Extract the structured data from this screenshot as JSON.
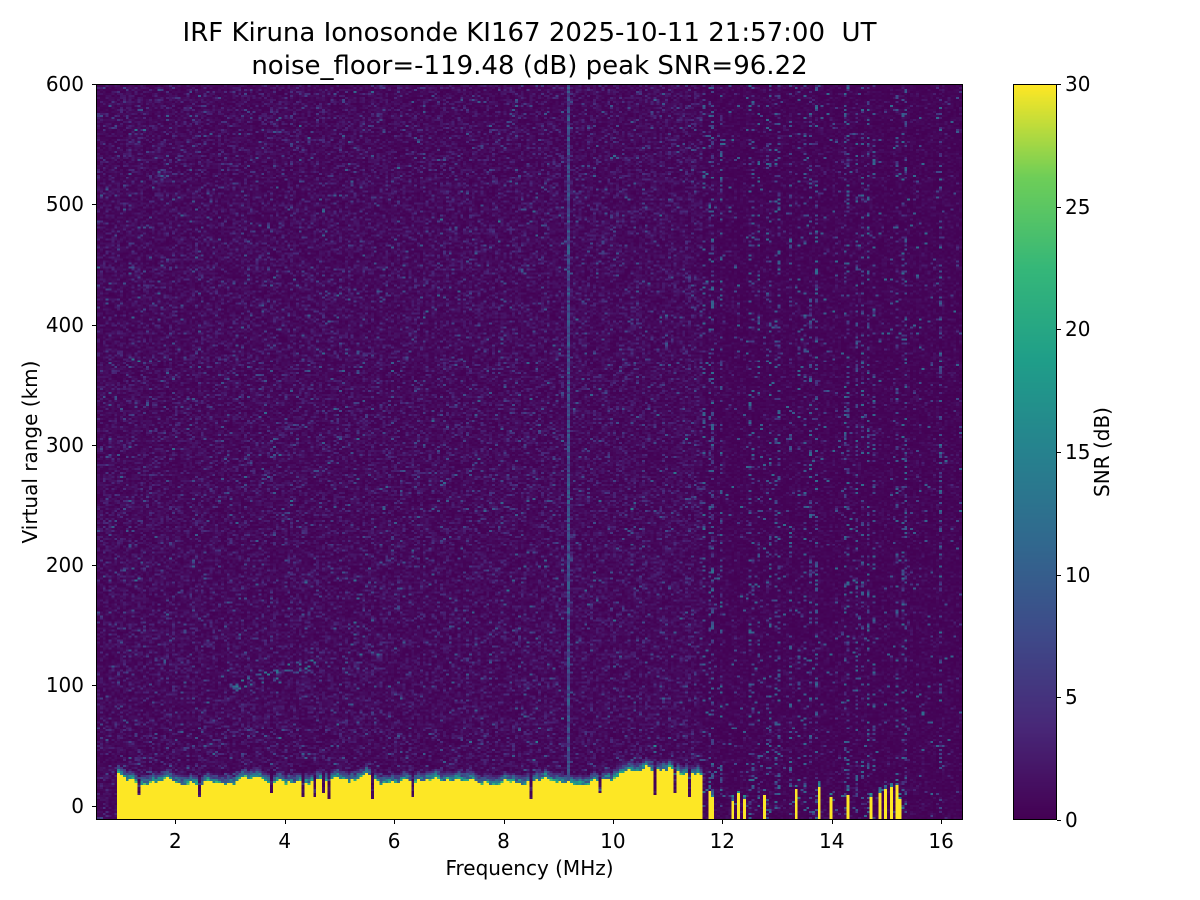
{
  "chart_data": {
    "type": "heatmap",
    "title": "IRF Kiruna Ionosonde KI167 2025-10-11 21:57:00  UT",
    "subtitle": "noise_floor=-119.48 (dB) peak SNR=96.22",
    "station": "IRF Kiruna Ionosonde",
    "station_id": "KI167",
    "timestamp_ut": "2025-10-11 21:57:00 UT",
    "noise_floor_db": -119.48,
    "peak_snr_db": 96.22,
    "xlabel": "Frequency (MHz)",
    "ylabel": "Virtual range (km)",
    "xlim": [
      0.55,
      16.4
    ],
    "ylim": [
      -12,
      600
    ],
    "x_ticks": [
      2,
      4,
      6,
      8,
      10,
      12,
      14,
      16
    ],
    "y_ticks": [
      0,
      100,
      200,
      300,
      400,
      500,
      600
    ],
    "grid": false,
    "colormap": "viridis",
    "viridis_stops": [
      [
        0.0,
        "#440154"
      ],
      [
        0.125,
        "#482878"
      ],
      [
        0.25,
        "#3e4a89"
      ],
      [
        0.375,
        "#31688e"
      ],
      [
        0.5,
        "#26828e"
      ],
      [
        0.625,
        "#1f9e89"
      ],
      [
        0.75,
        "#35b779"
      ],
      [
        0.875,
        "#6ece58"
      ],
      [
        1.0,
        "#fde725"
      ]
    ],
    "colorbar": {
      "label": "SNR (dB)",
      "min": 0,
      "max": 30,
      "ticks": [
        0,
        5,
        10,
        15,
        20,
        25,
        30
      ]
    },
    "background_noise_db": [
      0,
      4
    ],
    "features": {
      "ground_clutter": {
        "freq_mhz": [
          0.92,
          11.62
        ],
        "top_km_range": [
          17,
          33
        ],
        "snr_db": 30,
        "description": "saturated yellow ground-return band with ragged teal upper edge and narrow dark notch slits"
      },
      "sparse_clutter": {
        "freq_mhz": [
          11.62,
          16.3
        ],
        "segment_probability_near": 0.3,
        "segment_probability_far": 0.17,
        "height_km": [
          3,
          16
        ],
        "description": "intermittent narrow yellow ground-return segments above 11.6 MHz"
      },
      "striped_noise": {
        "freq_mhz": [
          11.55,
          16.4
        ],
        "description": "vertical dashed interference stripes over darker background"
      },
      "interference_line": {
        "freq_mhz": 9.2,
        "snr_db": [
          4,
          11
        ],
        "description": "continuous weak teal vertical interference line spanning all ranges"
      },
      "faint_echo": {
        "freq_mhz": [
          3.0,
          4.6
        ],
        "range_km": [
          98,
          119
        ],
        "description": "faint diagonal echo trace near 100-120 km"
      }
    }
  }
}
